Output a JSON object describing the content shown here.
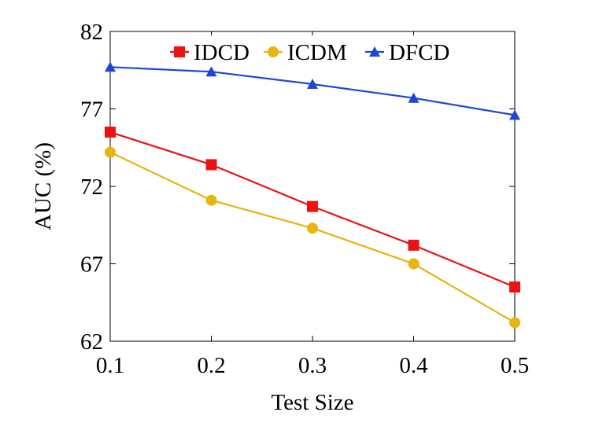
{
  "chart_data": {
    "type": "line",
    "title": "",
    "xlabel": "Test Size",
    "ylabel": "AUC (%)",
    "x": [
      0.1,
      0.2,
      0.3,
      0.4,
      0.5
    ],
    "x_tick_labels": [
      "0.1",
      "0.2",
      "0.3",
      "0.4",
      "0.5"
    ],
    "xlim": [
      0.1,
      0.5
    ],
    "ylim": [
      62,
      82
    ],
    "y_ticks": [
      62,
      67,
      72,
      77,
      82
    ],
    "y_tick_labels": [
      "62",
      "67",
      "72",
      "77",
      "82"
    ],
    "grid": false,
    "legend_position": "top-right",
    "series": [
      {
        "name": "IDCD",
        "marker": "square",
        "color": "#ee1111",
        "values": [
          75.5,
          73.4,
          70.7,
          68.2,
          65.5
        ]
      },
      {
        "name": "ICDM",
        "marker": "circle",
        "color": "#e8b40f",
        "values": [
          74.2,
          71.1,
          69.3,
          67.0,
          63.2
        ]
      },
      {
        "name": "DFCD",
        "marker": "triangle",
        "color": "#1f45d6",
        "values": [
          79.7,
          79.4,
          78.6,
          77.7,
          76.6
        ]
      }
    ]
  }
}
